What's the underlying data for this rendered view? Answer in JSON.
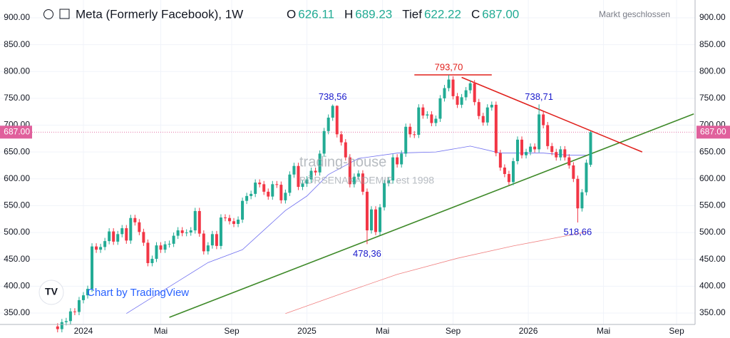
{
  "chart_data": {
    "type": "candlestick",
    "title": "Meta (Formerly Facebook), 1W",
    "ohlc_header": [
      {
        "key": "O",
        "value": 626.11,
        "label": "626.11"
      },
      {
        "key": "H",
        "value": 689.23,
        "label": "689.23"
      },
      {
        "key": "Tief",
        "value": 622.22,
        "label": "622.22"
      },
      {
        "key": "C",
        "value": 687,
        "label": "687.00"
      }
    ],
    "status": "Markt geschlossen",
    "credit": "Chart by TradingView",
    "watermark": [
      "trading-house",
      "BÖRSENAKADEMIE est 1998"
    ],
    "up_color": "#22ab94",
    "down_color": "#f23645",
    "open": [
      325,
      320,
      333,
      335,
      353,
      352,
      374,
      383,
      395,
      474,
      468,
      473,
      484,
      502,
      483,
      497,
      508,
      485,
      527,
      519,
      501,
      481,
      443,
      451,
      476,
      468,
      478,
      479,
      494,
      504,
      499,
      500,
      504,
      540,
      498,
      465,
      476,
      497,
      475,
      528,
      527,
      521,
      516,
      524,
      559,
      568,
      572,
      593,
      590,
      576,
      567,
      590,
      589,
      560,
      574,
      608,
      624,
      585,
      591,
      599,
      615,
      612,
      647,
      689,
      714,
      736,
      683,
      668,
      640,
      590,
      604,
      610,
      576,
      504,
      543,
      501,
      547,
      592,
      597,
      640,
      627,
      647,
      697,
      683,
      682,
      733,
      718,
      720,
      704,
      712,
      750,
      769,
      785,
      754,
      738,
      752,
      765,
      778,
      743,
      717,
      705,
      733,
      738,
      648,
      621,
      609,
      594,
      633,
      673,
      644,
      650,
      660,
      655,
      720,
      700,
      661,
      650,
      640,
      655,
      640,
      625,
      600,
      545,
      575,
      626.11
    ],
    "high": [
      331,
      339,
      341,
      359,
      359,
      380,
      389,
      401,
      480,
      480,
      479,
      490,
      508,
      508,
      503,
      514,
      514,
      533,
      533,
      525,
      507,
      487,
      457,
      482,
      482,
      484,
      485,
      500,
      510,
      510,
      506,
      510,
      546,
      546,
      504,
      482,
      503,
      503,
      534,
      534,
      533,
      527,
      530,
      565,
      574,
      578,
      599,
      599,
      596,
      582,
      596,
      596,
      595,
      580,
      614,
      630,
      630,
      597,
      605,
      621,
      621,
      653,
      695,
      720,
      738.56,
      737,
      689,
      674,
      646,
      610,
      616,
      616,
      582,
      549,
      549,
      553,
      598,
      603,
      646,
      646,
      653,
      703,
      703,
      689,
      739,
      739,
      726,
      726,
      718,
      756,
      775,
      793.7,
      791,
      760,
      758,
      771,
      784,
      784,
      749,
      723,
      739,
      744,
      744,
      654,
      627,
      615,
      639,
      679,
      679,
      656,
      666,
      666,
      738.71,
      726,
      706,
      667,
      656,
      661,
      661,
      646,
      631,
      606,
      581,
      636,
      689.23
    ],
    "low": [
      314,
      314,
      327,
      329,
      346,
      346,
      368,
      377,
      389,
      462,
      462,
      467,
      478,
      477,
      477,
      491,
      479,
      479,
      513,
      495,
      475,
      437,
      437,
      445,
      462,
      462,
      472,
      473,
      488,
      493,
      493,
      494,
      498,
      492,
      459,
      459,
      470,
      469,
      469,
      521,
      515,
      510,
      510,
      518,
      553,
      562,
      566,
      584,
      570,
      561,
      561,
      583,
      554,
      554,
      568,
      602,
      579,
      579,
      585,
      593,
      606,
      606,
      641,
      683,
      708,
      677,
      662,
      634,
      584,
      584,
      598,
      570,
      478.36,
      498,
      495,
      495,
      541,
      586,
      591,
      621,
      621,
      641,
      677,
      676,
      676,
      712,
      712,
      698,
      698,
      706,
      744,
      763,
      748,
      732,
      732,
      746,
      759,
      737,
      711,
      699,
      699,
      727,
      642,
      615,
      603,
      588,
      588,
      627,
      638,
      638,
      644,
      649,
      649,
      694,
      655,
      644,
      634,
      634,
      634,
      619,
      594,
      518.66,
      539,
      569,
      622.22
    ],
    "close": [
      320,
      333,
      335,
      353,
      352,
      374,
      383,
      395,
      474,
      468,
      473,
      484,
      502,
      483,
      497,
      508,
      485,
      527,
      519,
      501,
      481,
      443,
      451,
      476,
      468,
      478,
      479,
      494,
      504,
      499,
      500,
      504,
      540,
      498,
      465,
      476,
      497,
      475,
      528,
      527,
      521,
      516,
      524,
      559,
      568,
      572,
      593,
      590,
      576,
      567,
      590,
      589,
      560,
      574,
      608,
      624,
      585,
      591,
      599,
      615,
      612,
      647,
      689,
      714,
      736,
      683,
      668,
      640,
      590,
      604,
      610,
      576,
      504,
      543,
      501,
      547,
      592,
      597,
      640,
      627,
      647,
      697,
      683,
      682,
      733,
      718,
      720,
      704,
      712,
      750,
      769,
      785,
      754,
      738,
      752,
      765,
      778,
      743,
      717,
      705,
      733,
      738,
      648,
      621,
      609,
      594,
      633,
      673,
      644,
      650,
      660,
      655,
      720,
      700,
      661,
      650,
      640,
      655,
      640,
      625,
      600,
      545,
      575,
      630,
      687
    ],
    "lines": [
      {
        "color": "#6f6ff0",
        "x": [
          16,
          35,
          43,
          53,
          58,
          63,
          70,
          79,
          88,
          96,
          103,
          113,
          119,
          123
        ],
        "values": [
          349,
          444,
          468,
          541,
          568,
          608,
          638,
          648,
          650,
          661,
          648,
          648,
          644,
          644
        ]
      },
      {
        "color": "#f08080",
        "x": [
          53,
          66,
          79,
          93,
          106,
          123
        ],
        "values": [
          349,
          386,
          422,
          452,
          475,
          501
        ]
      },
      {
        "color": "#3f8a2a",
        "x": [
          26,
          148
        ],
        "values": [
          342,
          721
        ]
      },
      {
        "color": "#e0201c",
        "x": [
          94,
          136
        ],
        "values": [
          789,
          650
        ]
      },
      {
        "color": "#e0201c",
        "x": [
          83,
          101
        ],
        "values": [
          793.7,
          793.7
        ]
      }
    ],
    "annotations": [
      {
        "x": 91,
        "value": 793.7,
        "label": "793,70",
        "color": "#e0201c"
      },
      {
        "x": 64,
        "value": 738.56,
        "label": "738,56",
        "color": "#1a1acc"
      },
      {
        "x": 112,
        "value": 738.71,
        "label": "738,71",
        "color": "#1a1acc"
      },
      {
        "x": 72,
        "value": 478.36,
        "label": "478,36",
        "color": "#1a1acc"
      },
      {
        "x": 121,
        "value": 518.66,
        "label": "518,66",
        "color": "#1a1acc"
      }
    ],
    "last_price": {
      "value": 687,
      "label": "687.00",
      "color": "#e0609c"
    },
    "xlim": [
      -13.4,
      148.3
    ],
    "xticks": [
      {
        "value": 6,
        "label": "2024"
      },
      {
        "value": 24,
        "label": "Mai"
      },
      {
        "value": 40.5,
        "label": "Sep"
      },
      {
        "value": 58,
        "label": "2025"
      },
      {
        "value": 75.6,
        "label": "Mai"
      },
      {
        "value": 92,
        "label": "Sep"
      },
      {
        "value": 109.5,
        "label": "2026"
      },
      {
        "value": 127,
        "label": "Mai"
      },
      {
        "value": 144,
        "label": "Sep"
      }
    ],
    "ylim": [
      328.7,
      933.2
    ],
    "yticks": [
      {
        "value": 350,
        "label": "350.00"
      },
      {
        "value": 400,
        "label": "400.00"
      },
      {
        "value": 450,
        "label": "450.00"
      },
      {
        "value": 500,
        "label": "500.00"
      },
      {
        "value": 550,
        "label": "550.00"
      },
      {
        "value": 600,
        "label": "600.00"
      },
      {
        "value": 650,
        "label": "650.00"
      },
      {
        "value": 700,
        "label": "700.00"
      },
      {
        "value": 750,
        "label": "750.00"
      },
      {
        "value": 800,
        "label": "800.00"
      },
      {
        "value": 850,
        "label": "850.00"
      },
      {
        "value": 900,
        "label": "900.00"
      }
    ],
    "grid": true
  }
}
